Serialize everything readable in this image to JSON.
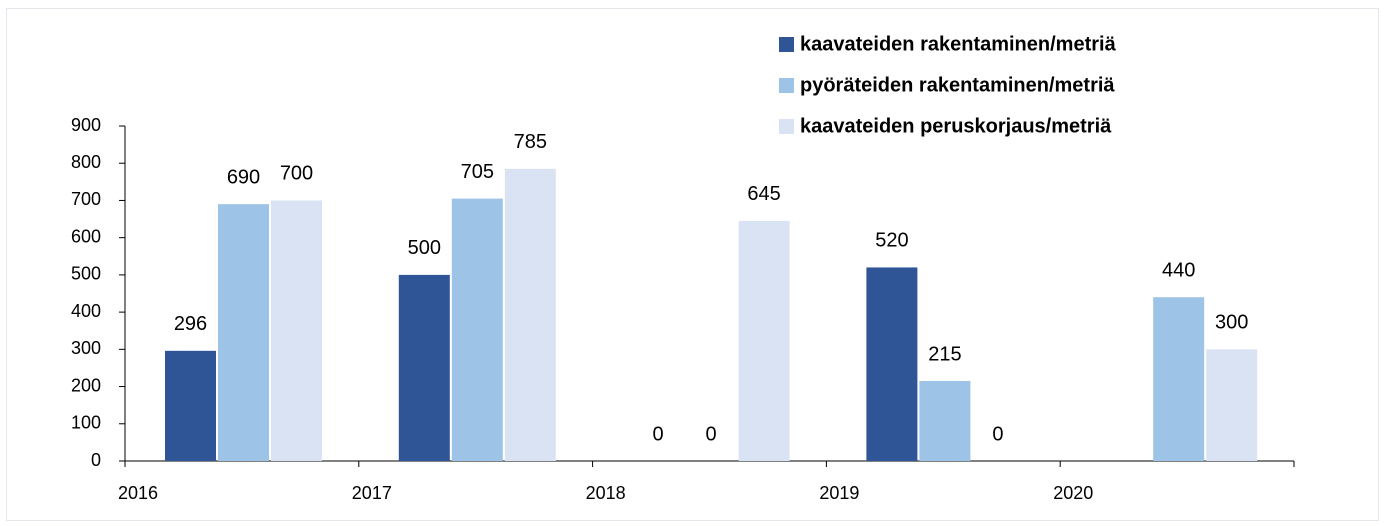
{
  "chart_data": {
    "type": "bar",
    "categories": [
      "2016",
      "2017",
      "2018",
      "2019",
      "2020"
    ],
    "series": [
      {
        "name": "kaavateiden rakentaminen/metriä",
        "color": "#2f5597",
        "values": [
          296,
          500,
          0,
          520,
          null
        ]
      },
      {
        "name": "pyöräteiden rakentaminen/metriä",
        "color": "#9dc3e6",
        "values": [
          690,
          705,
          0,
          215,
          440
        ]
      },
      {
        "name": "kaavateiden peruskorjaus/metriä",
        "color": "#dae3f3",
        "values": [
          700,
          785,
          645,
          0,
          300
        ]
      }
    ],
    "ylim": [
      0,
      900
    ],
    "yticks": [
      0,
      100,
      200,
      300,
      400,
      500,
      600,
      700,
      800,
      900
    ],
    "legend": "top-right",
    "grid": false
  }
}
